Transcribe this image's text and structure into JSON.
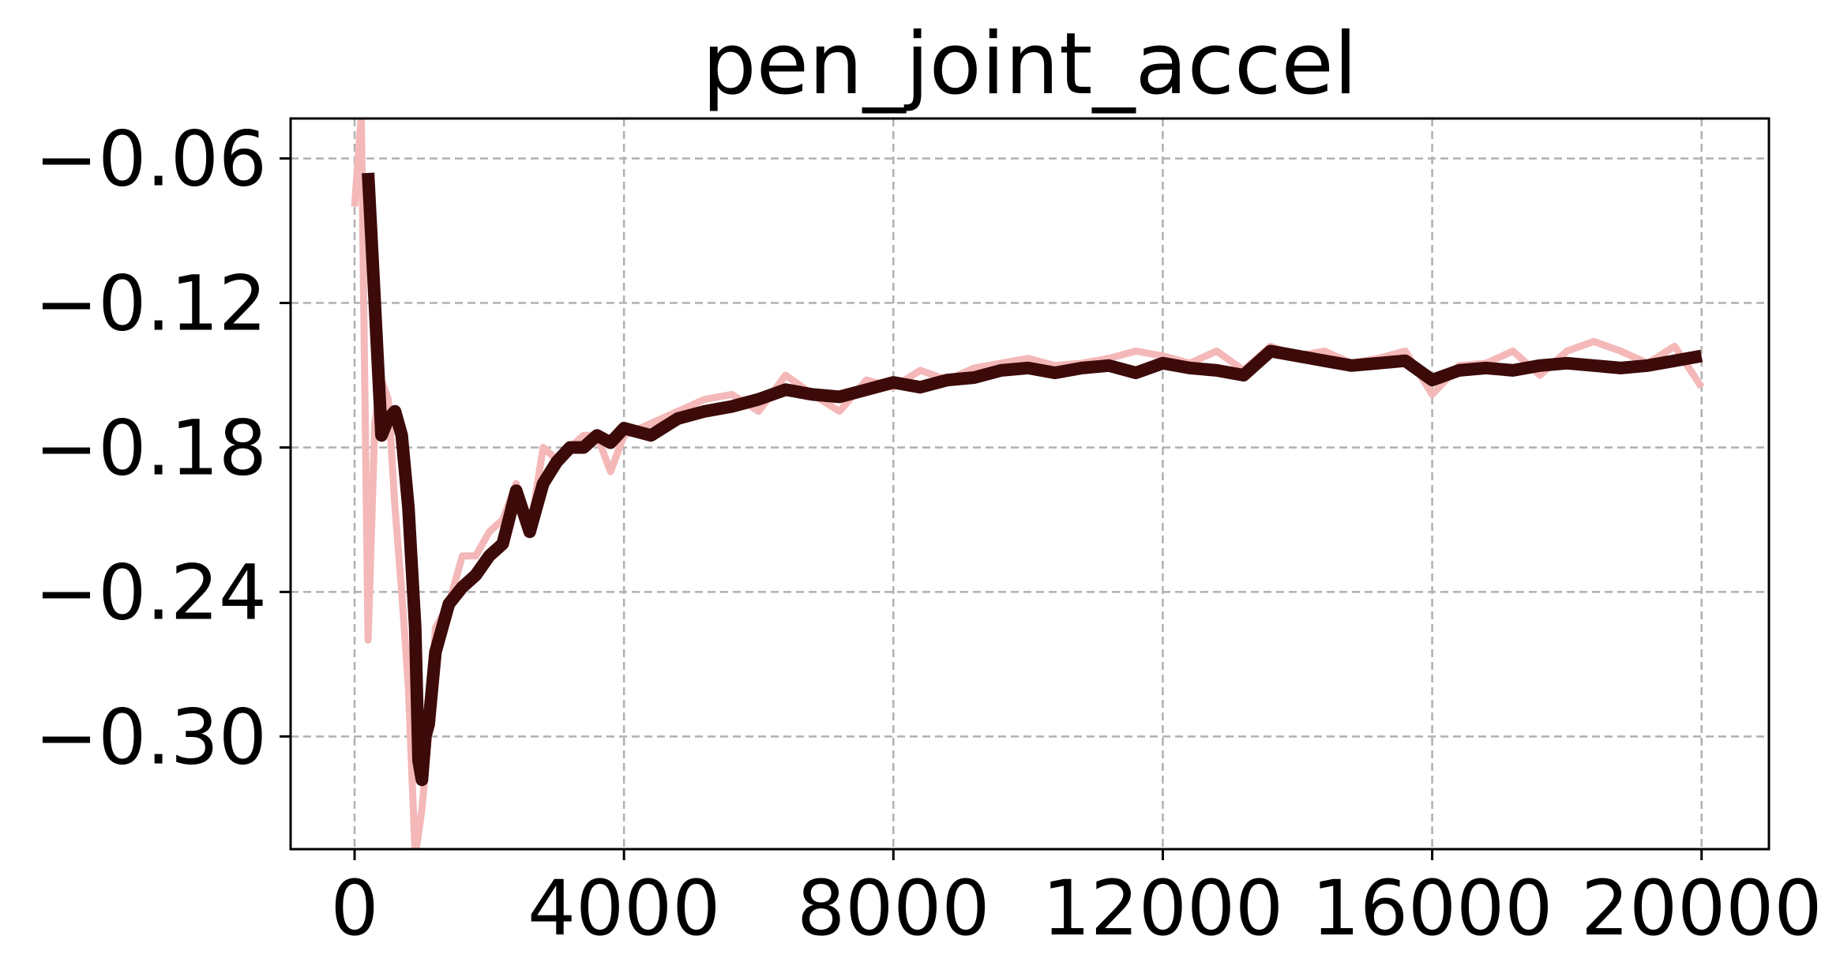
{
  "chart_data": {
    "type": "line",
    "title": "pen_joint_accel",
    "xlabel": "",
    "ylabel": "",
    "xlim": [
      -950,
      21000
    ],
    "ylim": [
      -0.3468,
      -0.0434
    ],
    "xticks": [
      0,
      4000,
      8000,
      12000,
      16000,
      20000
    ],
    "xtick_labels": [
      "0",
      "4000",
      "8000",
      "12000",
      "16000",
      "20000"
    ],
    "yticks": [
      -0.06,
      -0.12,
      -0.18,
      -0.24,
      -0.3
    ],
    "ytick_labels": [
      "−0.06",
      "−0.12",
      "−0.18",
      "−0.24",
      "−0.30"
    ],
    "grid": true,
    "legend": false,
    "colors": {
      "raw": "#f4b8b8",
      "smoothed": "#3d0a0a",
      "grid": "#b0b0b0"
    },
    "series": [
      {
        "role": "raw",
        "x": [
          0,
          100,
          200,
          300,
          400,
          500,
          600,
          700,
          800,
          900,
          1000,
          1100,
          1200,
          1400,
          1600,
          1800,
          2000,
          2200,
          2400,
          2600,
          2800,
          3000,
          3200,
          3400,
          3600,
          3800,
          4000,
          4400,
          4800,
          5200,
          5600,
          6000,
          6400,
          6800,
          7200,
          7600,
          8000,
          8400,
          8800,
          9200,
          9600,
          10000,
          10400,
          10800,
          11200,
          11600,
          12000,
          12400,
          12800,
          13200,
          13600,
          14000,
          14400,
          14800,
          15200,
          15600,
          16000,
          16400,
          16800,
          17200,
          17600,
          18000,
          18400,
          18800,
          19200,
          19600,
          20000
        ],
        "y": [
          -0.08,
          -0.042,
          -0.26,
          -0.17,
          -0.152,
          -0.16,
          -0.205,
          -0.24,
          -0.28,
          -0.35,
          -0.33,
          -0.3,
          -0.255,
          -0.245,
          -0.225,
          -0.225,
          -0.215,
          -0.21,
          -0.195,
          -0.215,
          -0.18,
          -0.185,
          -0.18,
          -0.175,
          -0.175,
          -0.19,
          -0.175,
          -0.17,
          -0.165,
          -0.16,
          -0.158,
          -0.165,
          -0.15,
          -0.158,
          -0.165,
          -0.152,
          -0.155,
          -0.148,
          -0.152,
          -0.147,
          -0.145,
          -0.143,
          -0.146,
          -0.145,
          -0.143,
          -0.14,
          -0.142,
          -0.145,
          -0.14,
          -0.148,
          -0.138,
          -0.142,
          -0.14,
          -0.145,
          -0.143,
          -0.14,
          -0.158,
          -0.146,
          -0.145,
          -0.14,
          -0.15,
          -0.14,
          -0.136,
          -0.14,
          -0.145,
          -0.138,
          -0.155
        ]
      },
      {
        "role": "smoothed",
        "x": [
          200,
          300,
          400,
          500,
          600,
          700,
          800,
          900,
          950,
          1000,
          1050,
          1100,
          1200,
          1300,
          1400,
          1600,
          1800,
          2000,
          2200,
          2400,
          2600,
          2800,
          3000,
          3200,
          3400,
          3600,
          3800,
          4000,
          4400,
          4800,
          5200,
          5600,
          6000,
          6400,
          6800,
          7200,
          7600,
          8000,
          8400,
          8800,
          9200,
          9600,
          10000,
          10400,
          10800,
          11200,
          11600,
          12000,
          12400,
          12800,
          13200,
          13600,
          14000,
          14400,
          14800,
          15200,
          15600,
          16000,
          16400,
          16800,
          17200,
          17600,
          18000,
          18400,
          18800,
          19200,
          19600,
          20000
        ],
        "y": [
          -0.066,
          -0.12,
          -0.175,
          -0.168,
          -0.165,
          -0.175,
          -0.205,
          -0.255,
          -0.31,
          -0.318,
          -0.3,
          -0.295,
          -0.265,
          -0.255,
          -0.245,
          -0.238,
          -0.233,
          -0.225,
          -0.22,
          -0.198,
          -0.215,
          -0.195,
          -0.186,
          -0.18,
          -0.18,
          -0.175,
          -0.178,
          -0.172,
          -0.175,
          -0.168,
          -0.165,
          -0.163,
          -0.16,
          -0.156,
          -0.158,
          -0.159,
          -0.156,
          -0.153,
          -0.155,
          -0.152,
          -0.151,
          -0.148,
          -0.147,
          -0.149,
          -0.147,
          -0.146,
          -0.149,
          -0.145,
          -0.147,
          -0.148,
          -0.15,
          -0.14,
          -0.142,
          -0.144,
          -0.146,
          -0.145,
          -0.144,
          -0.152,
          -0.148,
          -0.147,
          -0.148,
          -0.146,
          -0.145,
          -0.146,
          -0.147,
          -0.146,
          -0.144,
          -0.142
        ]
      }
    ]
  }
}
